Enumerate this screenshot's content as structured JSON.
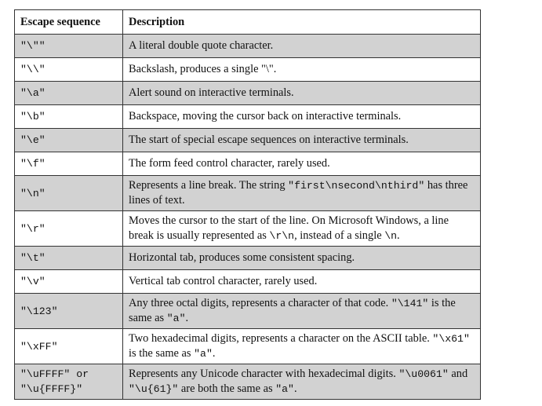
{
  "table": {
    "headers": {
      "seq": "Escape sequence",
      "desc": "Description"
    },
    "rows": [
      {
        "seq": "\"\\\"\"",
        "parts": [
          {
            "t": "A literal double quote character."
          }
        ]
      },
      {
        "seq": "\"\\\\\"",
        "parts": [
          {
            "t": "Backslash, produces a single \"\\\"."
          }
        ]
      },
      {
        "seq": "\"\\a\"",
        "parts": [
          {
            "t": "Alert sound on interactive terminals."
          }
        ]
      },
      {
        "seq": "\"\\b\"",
        "parts": [
          {
            "t": "Backspace, moving the cursor back on interactive terminals."
          }
        ]
      },
      {
        "seq": "\"\\e\"",
        "parts": [
          {
            "t": "The start of special escape sequences on interactive terminals."
          }
        ]
      },
      {
        "seq": "\"\\f\"",
        "parts": [
          {
            "t": "The form feed control character, rarely used."
          }
        ]
      },
      {
        "seq": "\"\\n\"",
        "parts": [
          {
            "t": "Represents a line break. The string "
          },
          {
            "c": "\"first\\nsecond\\nthird\""
          },
          {
            "t": " has three lines of text."
          }
        ]
      },
      {
        "seq": "\"\\r\"",
        "parts": [
          {
            "t": "Moves the cursor to the start of the line. On Microsoft Windows, a line break is usually represented as "
          },
          {
            "c": "\\r\\n"
          },
          {
            "t": ", instead of a single "
          },
          {
            "c": "\\n"
          },
          {
            "t": "."
          }
        ]
      },
      {
        "seq": "\"\\t\"",
        "parts": [
          {
            "t": "Horizontal tab, produces some consistent spacing."
          }
        ]
      },
      {
        "seq": "\"\\v\"",
        "parts": [
          {
            "t": "Vertical tab control character, rarely used."
          }
        ]
      },
      {
        "seq": "\"\\123\"",
        "parts": [
          {
            "t": "Any three octal digits, represents a character of that code. "
          },
          {
            "c": "\"\\141\""
          },
          {
            "t": " is the same as "
          },
          {
            "c": "\"a\""
          },
          {
            "t": "."
          }
        ]
      },
      {
        "seq": "\"\\xFF\"",
        "parts": [
          {
            "t": "Two hexadecimal digits, represents a character on the ASCII table. "
          },
          {
            "c": "\"\\x61\""
          },
          {
            "t": " is the same as "
          },
          {
            "c": "\"a\""
          },
          {
            "t": "."
          }
        ]
      },
      {
        "seq_lines": [
          "\"\\uFFFF\" or",
          "\"\\u{FFFF}\""
        ],
        "parts": [
          {
            "t": "Represents any Unicode character with hexadecimal digits. "
          },
          {
            "c": "\"\\u0061\""
          },
          {
            "t": " and "
          },
          {
            "c": "\"\\u{61}\""
          },
          {
            "t": " are both the same as "
          },
          {
            "c": "\"a\""
          },
          {
            "t": "."
          }
        ]
      }
    ]
  }
}
